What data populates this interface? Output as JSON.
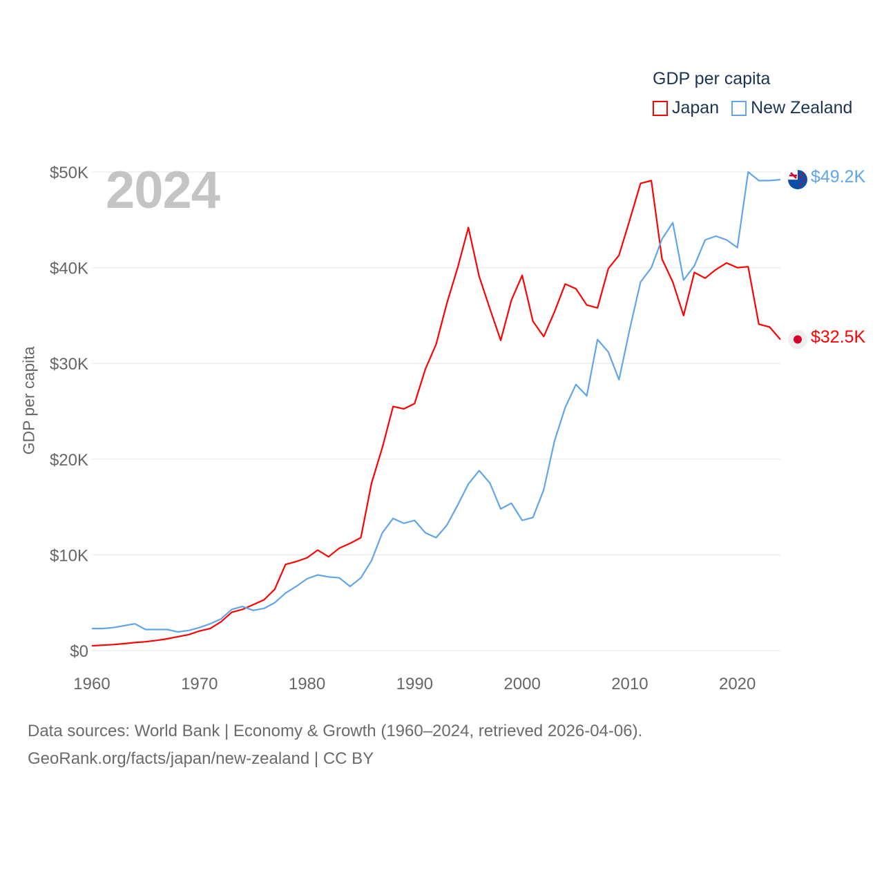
{
  "legend": {
    "title": "GDP per capita",
    "items": [
      "Japan",
      "New Zealand"
    ]
  },
  "year_label": "2024",
  "end_labels": {
    "japan": "$32.5K",
    "new_zealand": "$49.2K"
  },
  "footer": {
    "line1": "Data sources: World Bank | Economy & Growth (1960–2024, retrieved 2026-04-06).",
    "line2": "GeoRank.org/facts/japan/new-zealand | CC BY"
  },
  "colors": {
    "japan": "#ff0000",
    "new_zealand": "#5ea5ec",
    "grid": "#e6e6e6",
    "text": "#666666"
  },
  "chart_data": {
    "type": "line",
    "title": "GDP per capita",
    "xlabel": "",
    "ylabel": "GDP per capita",
    "xlim": [
      1960,
      2024
    ],
    "ylim": [
      0,
      50
    ],
    "y_unit": "thousand USD",
    "yticks": [
      0,
      10,
      20,
      30,
      40,
      50
    ],
    "ytick_labels": [
      "$0",
      "$10K",
      "$20K",
      "$30K",
      "$40K",
      "$50K"
    ],
    "xticks": [
      1960,
      1970,
      1980,
      1990,
      2000,
      2010,
      2020
    ],
    "xtick_labels": [
      "1960",
      "1970",
      "1980",
      "1990",
      "2000",
      "2010",
      "2020"
    ],
    "grid": true,
    "legend_position": "top-right",
    "x": [
      1960,
      1961,
      1962,
      1963,
      1964,
      1965,
      1966,
      1967,
      1968,
      1969,
      1970,
      1971,
      1972,
      1973,
      1974,
      1975,
      1976,
      1977,
      1978,
      1979,
      1980,
      1981,
      1982,
      1983,
      1984,
      1985,
      1986,
      1987,
      1988,
      1989,
      1990,
      1991,
      1992,
      1993,
      1994,
      1995,
      1996,
      1997,
      1998,
      1999,
      2000,
      2001,
      2002,
      2003,
      2004,
      2005,
      2006,
      2007,
      2008,
      2009,
      2010,
      2011,
      2012,
      2013,
      2014,
      2015,
      2016,
      2017,
      2018,
      2019,
      2020,
      2021,
      2022,
      2023,
      2024
    ],
    "series": [
      {
        "name": "Japan",
        "color": "#ff0000",
        "values": [
          0.5,
          0.56,
          0.63,
          0.72,
          0.84,
          0.92,
          1.06,
          1.23,
          1.45,
          1.67,
          2.04,
          2.3,
          3.0,
          4.0,
          4.3,
          4.8,
          5.3,
          6.4,
          9.0,
          9.3,
          9.7,
          10.5,
          9.8,
          10.7,
          11.2,
          11.8,
          17.5,
          21.2,
          25.5,
          25.25,
          25.8,
          29.4,
          32.0,
          36.3,
          40.0,
          44.2,
          39.1,
          35.7,
          32.4,
          36.6,
          39.2,
          34.4,
          32.8,
          35.4,
          38.3,
          37.8,
          36.1,
          35.8,
          39.9,
          41.3,
          45.0,
          48.8,
          49.1,
          40.9,
          38.5,
          35.0,
          39.5,
          38.9,
          39.8,
          40.5,
          40.0,
          40.1,
          34.1,
          33.8,
          32.5
        ]
      },
      {
        "name": "New Zealand",
        "color": "#5ea5ec",
        "values": [
          2.3,
          2.3,
          2.4,
          2.6,
          2.8,
          2.2,
          2.2,
          2.2,
          1.95,
          2.1,
          2.4,
          2.8,
          3.3,
          4.3,
          4.6,
          4.2,
          4.4,
          5.0,
          6.0,
          6.7,
          7.5,
          7.9,
          7.7,
          7.6,
          6.7,
          7.6,
          9.4,
          12.3,
          13.8,
          13.3,
          13.6,
          12.3,
          11.8,
          13.1,
          15.2,
          17.4,
          18.8,
          17.5,
          14.8,
          15.4,
          13.6,
          13.9,
          16.8,
          21.9,
          25.4,
          27.8,
          26.6,
          32.5,
          31.2,
          28.3,
          33.6,
          38.5,
          40.0,
          43.0,
          44.7,
          38.7,
          40.2,
          42.9,
          43.3,
          42.9,
          42.1,
          50.0,
          49.1,
          49.1,
          49.2
        ]
      }
    ]
  }
}
